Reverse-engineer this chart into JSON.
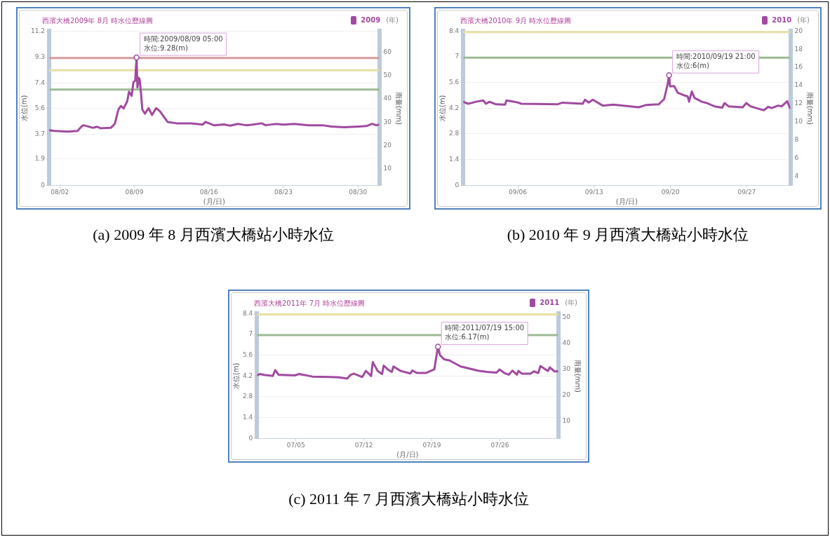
{
  "chart_data": [
    {
      "type": "line",
      "title": "西濱大橋2009年 8月 時水位歷線圖",
      "xlabel": "(月/日)",
      "ylabel": "水位(m)",
      "y2label": "雨量(mm)",
      "legend_title": "(年)",
      "legend": "top right",
      "grid": "y",
      "x": [
        "2009-08-01T00:00",
        "2009-08-01T12:00",
        "2009-08-02T17:00",
        "2009-08-03T16:00",
        "2009-08-04T01:00",
        "2009-08-04T06:00",
        "2009-08-05T03:00",
        "2009-08-05T12:00",
        "2009-08-05T20:00",
        "2009-08-06T19:00",
        "2009-08-07T04:00",
        "2009-08-07T12:00",
        "2009-08-07T18:00",
        "2009-08-08T00:00",
        "2009-08-08T08:00",
        "2009-08-08T12:00",
        "2009-08-08T18:00",
        "2009-08-08T22:00",
        "2009-08-09T02:00",
        "2009-08-09T05:00",
        "2009-08-09T07:00",
        "2009-08-09T10:00",
        "2009-08-09T12:00",
        "2009-08-09T15:00",
        "2009-08-09T18:00",
        "2009-08-10T00:00",
        "2009-08-10T08:00",
        "2009-08-10T16:00",
        "2009-08-11T01:00",
        "2009-08-11T09:00",
        "2009-08-11T18:00",
        "2009-08-12T03:00",
        "2009-08-12T23:00",
        "2009-08-14T09:00",
        "2009-08-15T10:00",
        "2009-08-15T16:00",
        "2009-08-16T12:00",
        "2009-08-17T10:00",
        "2009-08-18T00:00",
        "2009-08-18T17:00",
        "2009-08-19T12:00",
        "2009-08-20T03:00",
        "2009-08-20T23:00",
        "2009-08-21T08:00",
        "2009-08-22T06:00",
        "2009-08-23T01:00",
        "2009-08-24T00:00",
        "2009-08-25T09:00",
        "2009-08-26T16:00",
        "2009-08-27T12:00",
        "2009-08-28T17:00",
        "2009-08-29T18:00",
        "2009-08-30T19:00",
        "2009-08-31T08:00",
        "2009-08-31T17:00",
        "2009-08-31T23:00"
      ],
      "series": [
        {
          "name": "2009",
          "color": "#a04aa0",
          "values": [
            4.0,
            3.95,
            3.9,
            3.95,
            4.27,
            4.36,
            4.17,
            4.25,
            4.14,
            4.17,
            4.46,
            5.49,
            5.77,
            5.58,
            6.1,
            6.8,
            6.5,
            7.5,
            7.6,
            9.28,
            7.1,
            7.8,
            7.7,
            6.7,
            5.5,
            5.2,
            5.6,
            5.1,
            5.6,
            5.4,
            5.0,
            4.6,
            4.5,
            4.5,
            4.4,
            4.6,
            4.35,
            4.42,
            4.33,
            4.46,
            4.36,
            4.4,
            4.5,
            4.36,
            4.45,
            4.4,
            4.46,
            4.36,
            4.36,
            4.27,
            4.21,
            4.25,
            4.3,
            4.46,
            4.36,
            4.4
          ]
        }
      ],
      "xlim": [
        "2009-08-01T00:00",
        "2009-09-01T00:00"
      ],
      "xticks": [
        {
          "value": "2009-08-02",
          "label": "08/02"
        },
        {
          "value": "2009-08-09",
          "label": "08/09"
        },
        {
          "value": "2009-08-16",
          "label": "08/16"
        },
        {
          "value": "2009-08-23",
          "label": "08/23"
        },
        {
          "value": "2009-08-30",
          "label": "08/30"
        }
      ],
      "ylim": [
        0,
        11.2
      ],
      "yticks": [
        0,
        1.9,
        3.7,
        5.6,
        7.4,
        9.3,
        11.2
      ],
      "y2lim": [
        3,
        69
      ],
      "y2ticks": [
        10,
        20,
        30,
        40,
        50,
        60
      ],
      "ref_lines": [
        {
          "axis": "y",
          "value": 9.25,
          "color": "#d49c9c"
        },
        {
          "axis": "y",
          "value": 8.35,
          "color": "#e6e0a4"
        },
        {
          "axis": "y",
          "value": 6.95,
          "color": "#9bbb92"
        }
      ],
      "annotations": [
        {
          "text": "時間:2009/08/09 05:00\n水位:9.28(m)",
          "x": "2009-08-09T05:00",
          "y": 9.28
        },
        "(a) 2009 年 8 月西濱大橋站小時水位"
      ]
    },
    {
      "type": "line",
      "title": "西濱大橋2010年 9月 時水位歷線圖",
      "xlabel": "(月/日)",
      "ylabel": "水位(m)",
      "y2label": "雨量(mm)",
      "legend_title": "(年)",
      "legend": "top right",
      "grid": "y",
      "x": [
        "2010-09-01T00:00",
        "2010-09-01T11:00",
        "2010-09-02T04:00",
        "2010-09-02T20:00",
        "2010-09-03T02:00",
        "2010-09-03T10:00",
        "2010-09-04T00:00",
        "2010-09-04T20:00",
        "2010-09-04T23:00",
        "2010-09-05T21:00",
        "2010-09-06T08:00",
        "2010-09-09T15:00",
        "2010-09-10T02:00",
        "2010-09-11T23:00",
        "2010-09-12T04:00",
        "2010-09-12T12:00",
        "2010-09-12T21:00",
        "2010-09-13T19:00",
        "2010-09-14T18:00",
        "2010-09-17T02:00",
        "2010-09-17T18:00",
        "2010-09-18T22:00",
        "2010-09-19T10:00",
        "2010-09-19T18:00",
        "2010-09-19T21:00",
        "2010-09-19T23:00",
        "2010-09-20T08:00",
        "2010-09-20T16:00",
        "2010-09-21T06:00",
        "2010-09-21T14:00",
        "2010-09-21T17:00",
        "2010-09-21T23:00",
        "2010-09-22T05:00",
        "2010-09-22T21:00",
        "2010-09-23T08:00",
        "2010-09-24T01:00",
        "2010-09-24T18:00",
        "2010-09-24T23:00",
        "2010-09-25T08:00",
        "2010-09-26T15:00",
        "2010-09-26T23:00",
        "2010-09-27T08:00",
        "2010-09-28T06:00",
        "2010-09-28T14:00",
        "2010-09-28T23:00",
        "2010-09-29T07:00",
        "2010-09-29T21:00",
        "2010-09-30T05:00",
        "2010-09-30T17:00",
        "2010-09-30T23:00"
      ],
      "series": [
        {
          "name": "2010",
          "color": "#a04aa0",
          "values": [
            4.55,
            4.44,
            4.55,
            4.62,
            4.44,
            4.55,
            4.41,
            4.39,
            4.62,
            4.53,
            4.44,
            4.41,
            4.5,
            4.44,
            4.66,
            4.51,
            4.66,
            4.34,
            4.39,
            4.25,
            4.37,
            4.41,
            4.69,
            5.53,
            6,
            5.39,
            5.41,
            5.04,
            4.9,
            4.84,
            4.55,
            5.11,
            4.76,
            4.55,
            4.48,
            4.3,
            4.23,
            4.48,
            4.3,
            4.25,
            4.48,
            4.3,
            4.14,
            4.09,
            4.27,
            4.21,
            4.34,
            4.3,
            4.58,
            4.21
          ]
        }
      ],
      "xlim": [
        "2010-09-01T00:00",
        "2010-10-01T00:00"
      ],
      "xticks": [
        {
          "value": "2010-09-06",
          "label": "09/06"
        },
        {
          "value": "2010-09-13",
          "label": "09/13"
        },
        {
          "value": "2010-09-20",
          "label": "09/20"
        },
        {
          "value": "2010-09-27",
          "label": "09/27"
        }
      ],
      "ylim": [
        0,
        8.4
      ],
      "yticks": [
        0,
        1.4,
        2.8,
        4.2,
        5.6,
        7,
        8.4
      ],
      "y2lim": [
        3,
        20
      ],
      "y2ticks": [
        4,
        6,
        8,
        10,
        12,
        14,
        16,
        18,
        20
      ],
      "ref_lines": [
        {
          "axis": "y",
          "value": 8.35,
          "color": "#e6e0a4"
        },
        {
          "axis": "y",
          "value": 6.95,
          "color": "#9bbb92"
        }
      ],
      "annotations": [
        {
          "text": "時間:2010/09/19 21:00\n水位:6(m)",
          "x": "2010-09-19T21:00",
          "y": 6
        },
        "(b) 2010 年 9 月西濱大橋站小時水位"
      ]
    },
    {
      "type": "line",
      "title": "西濱大橋2011年 7月 時水位歷線圖",
      "xlabel": "(月/日)",
      "ylabel": "水位(m)",
      "y2label": "雨量(mm)",
      "legend_title": "(年)",
      "legend": "top right",
      "grid": "y",
      "x": [
        "2011-07-01T00:00",
        "2011-07-01T07:00",
        "2011-07-01T18:00",
        "2011-07-02T15:00",
        "2011-07-02T21:00",
        "2011-07-03T05:00",
        "2011-07-04T21:00",
        "2011-07-05T08:00",
        "2011-07-06T17:00",
        "2011-07-08T12:00",
        "2011-07-09T09:00",
        "2011-07-10T07:00",
        "2011-07-10T15:00",
        "2011-07-10T23:00",
        "2011-07-11T20:00",
        "2011-07-12T05:00",
        "2011-07-12T18:00",
        "2011-07-12T22:00",
        "2011-07-13T10:00",
        "2011-07-13T21:00",
        "2011-07-14T01:00",
        "2011-07-14T13:00",
        "2011-07-14T21:00",
        "2011-07-15T01:00",
        "2011-07-15T19:00",
        "2011-07-16T19:00",
        "2011-07-17T00:00",
        "2011-07-17T11:00",
        "2011-07-18T09:00",
        "2011-07-19T06:00",
        "2011-07-19T15:00",
        "2011-07-19T20:00",
        "2011-07-20T06:00",
        "2011-07-20T20:00",
        "2011-07-21T23:00",
        "2011-07-22T21:00",
        "2011-07-23T18:00",
        "2011-07-24T16:00",
        "2011-07-25T16:00",
        "2011-07-25T23:00",
        "2011-07-26T11:00",
        "2011-07-26T22:00",
        "2011-07-27T07:00",
        "2011-07-27T18:00",
        "2011-07-27T22:00",
        "2011-07-28T06:00",
        "2011-07-29T04:00",
        "2011-07-29T12:00",
        "2011-07-29T23:00",
        "2011-07-30T04:00",
        "2011-07-30T15:00",
        "2011-07-30T23:00",
        "2011-07-31T03:00",
        "2011-07-31T15:00",
        "2011-07-31T23:00"
      ],
      "series": [
        {
          "name": "2011",
          "color": "#a04aa0",
          "values": [
            4.24,
            4.33,
            4.27,
            4.2,
            4.6,
            4.29,
            4.24,
            4.33,
            4.16,
            4.13,
            4.11,
            4.03,
            4.27,
            4.36,
            4.13,
            4.54,
            4.2,
            5.14,
            4.54,
            4.33,
            4.9,
            4.6,
            4.47,
            4.84,
            4.54,
            4.37,
            4.57,
            4.4,
            4.4,
            4.64,
            6.17,
            5.61,
            5.32,
            5.24,
            4.84,
            4.7,
            4.56,
            4.47,
            4.43,
            4.64,
            4.4,
            4.29,
            4.56,
            4.29,
            4.54,
            4.36,
            4.36,
            4.51,
            4.4,
            4.87,
            4.67,
            4.54,
            4.78,
            4.51,
            4.51
          ]
        }
      ],
      "xlim": [
        "2011-07-01T00:00",
        "2011-08-01T00:00"
      ],
      "xticks": [
        {
          "value": "2011-07-05",
          "label": "07/05"
        },
        {
          "value": "2011-07-12",
          "label": "07/12"
        },
        {
          "value": "2011-07-19",
          "label": "07/19"
        },
        {
          "value": "2011-07-26",
          "label": "07/26"
        }
      ],
      "ylim": [
        0,
        8.4
      ],
      "yticks": [
        0,
        1.4,
        2.8,
        4.2,
        5.6,
        7,
        8.4
      ],
      "y2lim": [
        3.2,
        51.5
      ],
      "y2ticks": [
        10,
        20,
        30,
        40,
        50
      ],
      "ref_lines": [
        {
          "axis": "y",
          "value": 8.35,
          "color": "#e6e0a4"
        },
        {
          "axis": "y",
          "value": 6.95,
          "color": "#9bbb92"
        }
      ],
      "annotations": [
        {
          "text": "時間:2011/07/19 15:00\n水位:6.17(m)",
          "x": "2011-07-19T15:00",
          "y": 6.17
        },
        "(c) 2011 年 7 月西濱大橋站小時水位"
      ]
    }
  ]
}
